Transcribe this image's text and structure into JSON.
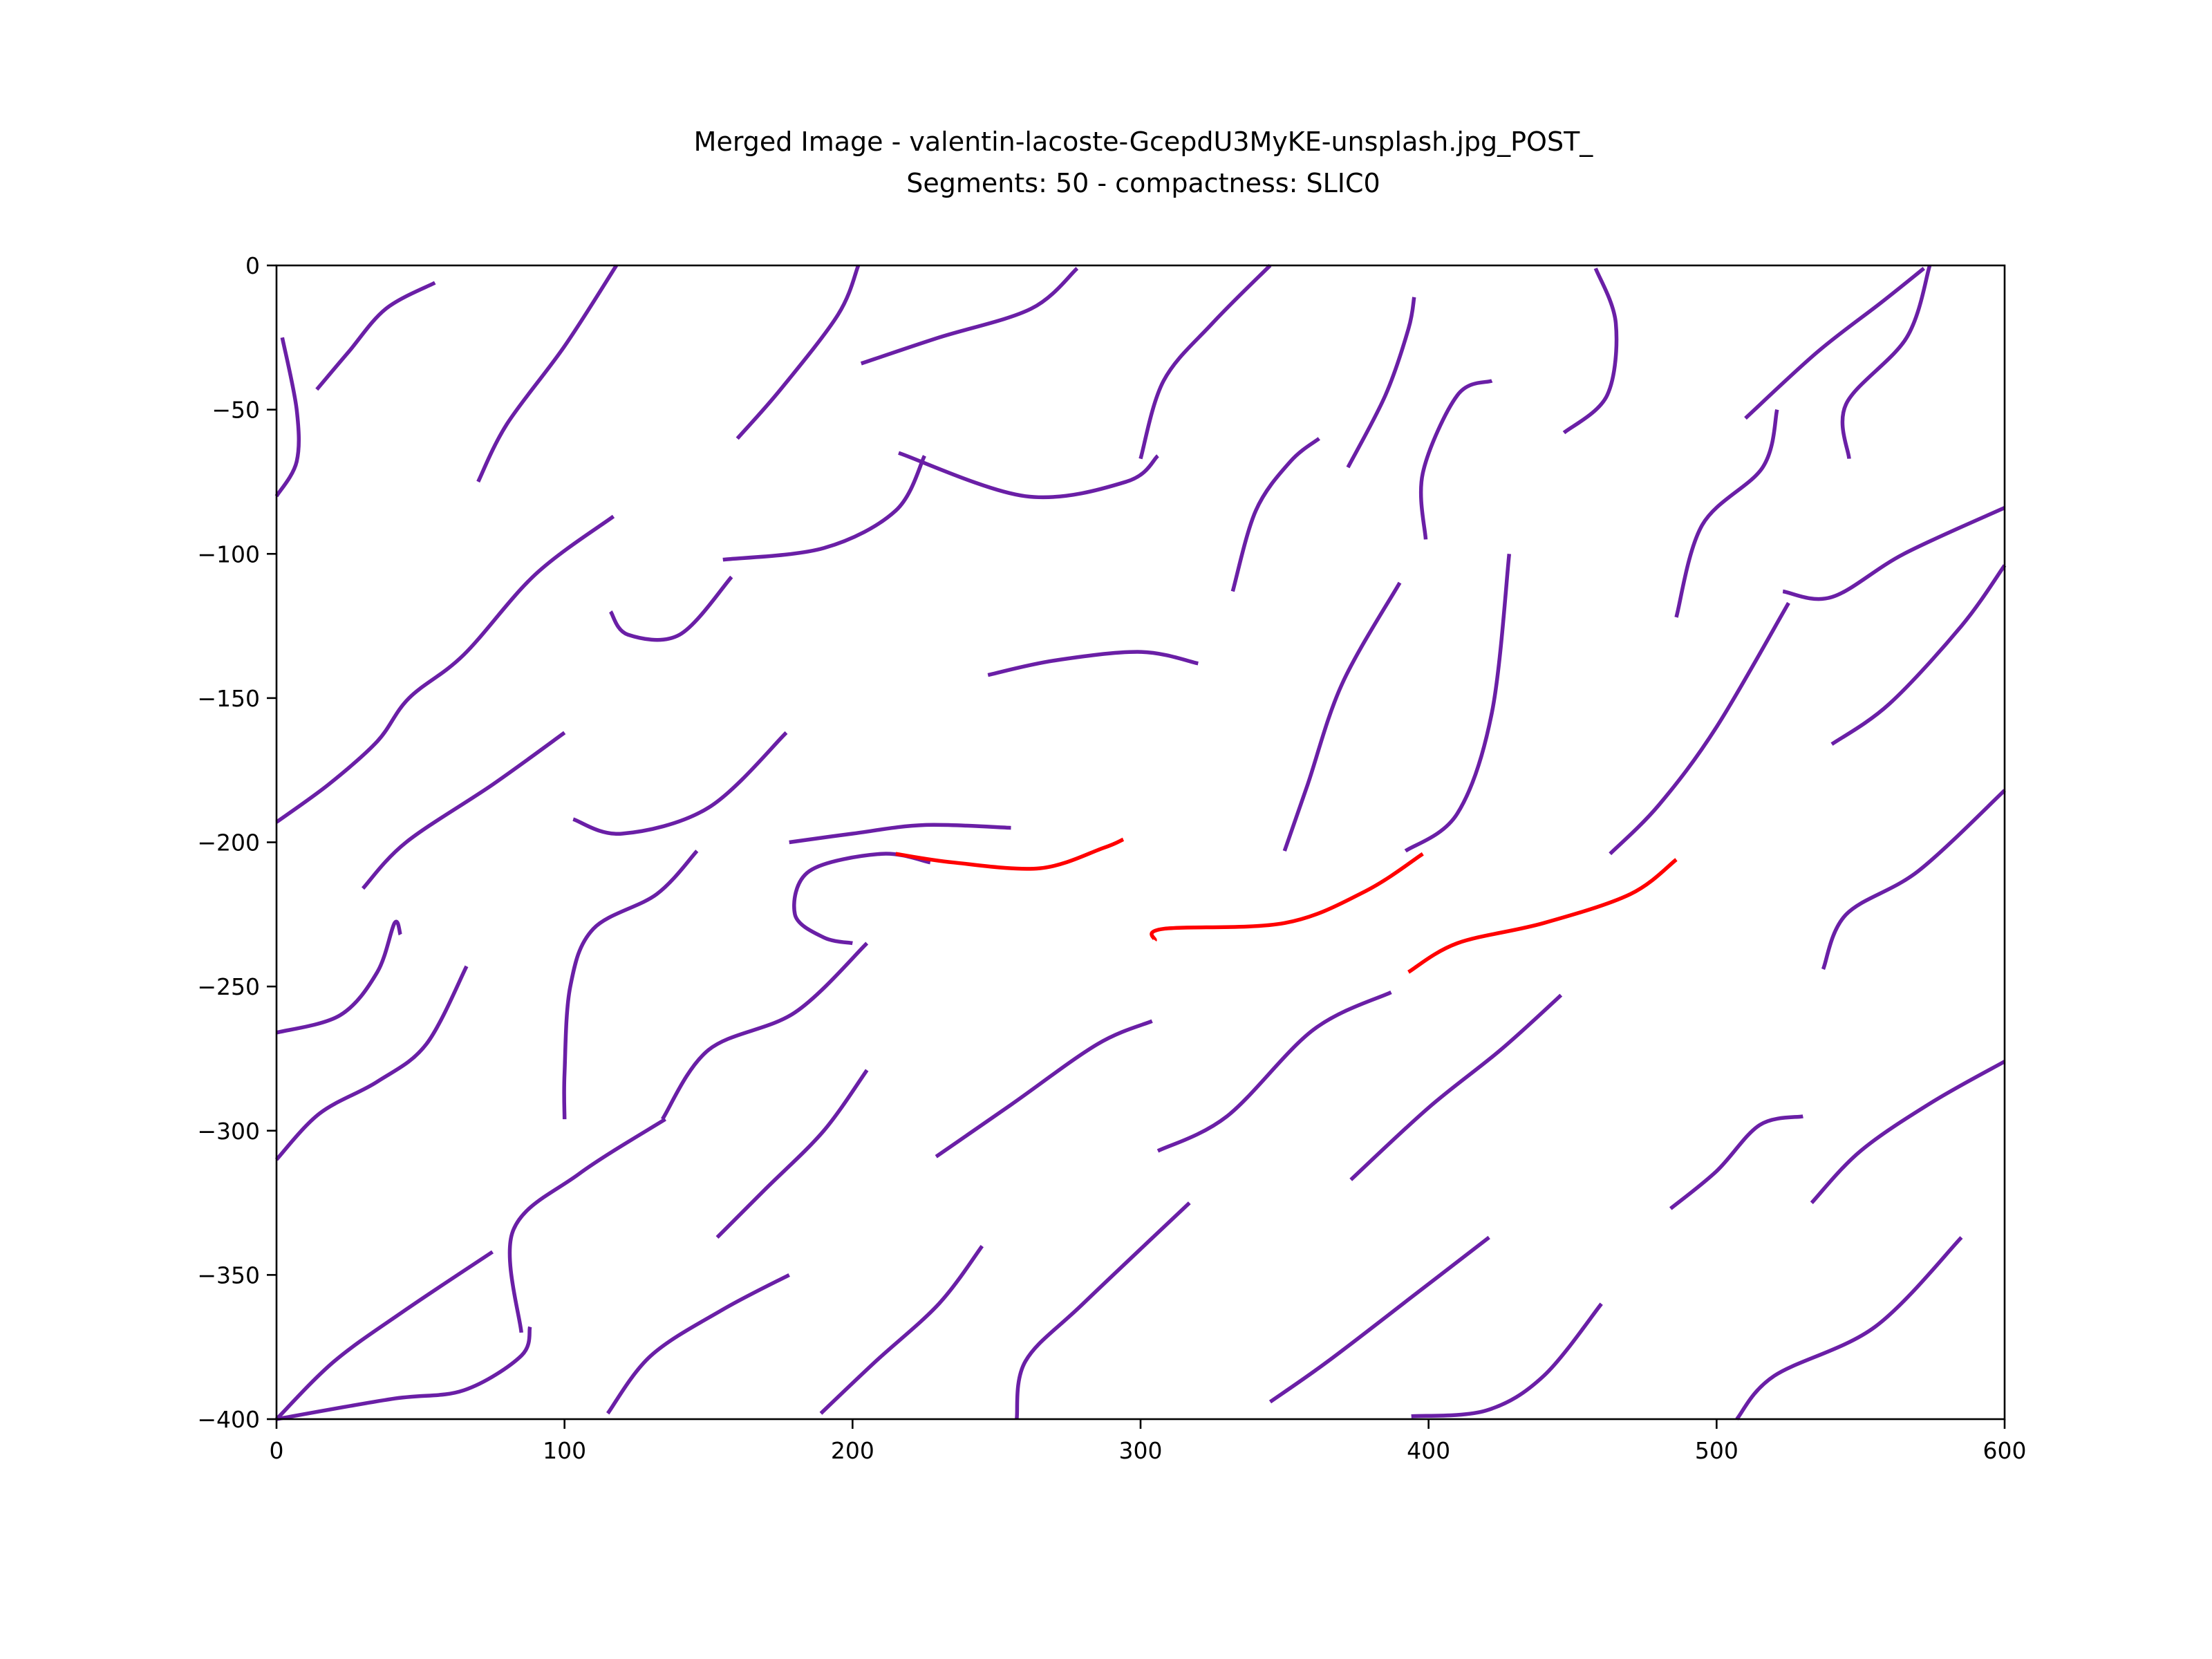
{
  "chart_data": {
    "type": "line",
    "title_line1": "Merged Image - valentin-lacoste-GcepdU3MyKE-unsplash.jpg_POST_",
    "title_line2": "Segments: 50 - compactness: SLIC0",
    "xlim": [
      0,
      600
    ],
    "ylim": [
      -400,
      0
    ],
    "xticks": [
      "0",
      "100",
      "200",
      "300",
      "400",
      "500",
      "600"
    ],
    "yticks": [
      "0",
      "−50",
      "−100",
      "−150",
      "−200",
      "−250",
      "−300",
      "−350",
      "−400"
    ],
    "xtick_values": [
      0,
      100,
      200,
      300,
      400,
      500,
      600
    ],
    "ytick_values": [
      0,
      -50,
      -100,
      -150,
      -200,
      -250,
      -300,
      -350,
      -400
    ],
    "grid": false,
    "colors": {
      "purple": "#6a1fa6",
      "red": "#ff0000"
    },
    "strokes": [
      {
        "color": "purple",
        "points": [
          [
            2,
            -25
          ],
          [
            7,
            -50
          ],
          [
            7,
            -68
          ],
          [
            0,
            -80
          ]
        ]
      },
      {
        "color": "purple",
        "points": [
          [
            14,
            -43
          ],
          [
            25,
            -30
          ],
          [
            38,
            -15
          ],
          [
            55,
            -6
          ]
        ]
      },
      {
        "color": "purple",
        "points": [
          [
            70,
            -75
          ],
          [
            80,
            -55
          ],
          [
            100,
            -28
          ],
          [
            118,
            0
          ]
        ]
      },
      {
        "color": "purple",
        "points": [
          [
            160,
            -60
          ],
          [
            175,
            -43
          ],
          [
            195,
            -17
          ],
          [
            202,
            0
          ]
        ]
      },
      {
        "color": "purple",
        "points": [
          [
            203,
            -34
          ],
          [
            230,
            -25
          ],
          [
            262,
            -15
          ],
          [
            278,
            -1
          ]
        ]
      },
      {
        "color": "purple",
        "points": [
          [
            300,
            -67
          ],
          [
            308,
            -40
          ],
          [
            325,
            -20
          ],
          [
            345,
            0
          ]
        ]
      },
      {
        "color": "purple",
        "points": [
          [
            216,
            -65
          ],
          [
            260,
            -80
          ],
          [
            295,
            -75
          ],
          [
            306,
            -66
          ]
        ]
      },
      {
        "color": "purple",
        "points": [
          [
            155,
            -102
          ],
          [
            190,
            -98
          ],
          [
            215,
            -85
          ],
          [
            225,
            -66
          ]
        ]
      },
      {
        "color": "purple",
        "points": [
          [
            116,
            -120
          ],
          [
            122,
            -128
          ],
          [
            140,
            -128
          ],
          [
            158,
            -108
          ]
        ]
      },
      {
        "color": "purple",
        "points": [
          [
            0,
            -193
          ],
          [
            18,
            -180
          ],
          [
            35,
            -165
          ],
          [
            46,
            -150
          ],
          [
            65,
            -135
          ],
          [
            90,
            -107
          ],
          [
            117,
            -87
          ]
        ]
      },
      {
        "color": "purple",
        "points": [
          [
            30,
            -216
          ],
          [
            45,
            -200
          ],
          [
            75,
            -180
          ],
          [
            100,
            -162
          ]
        ]
      },
      {
        "color": "purple",
        "points": [
          [
            103,
            -192
          ],
          [
            120,
            -197
          ],
          [
            150,
            -188
          ],
          [
            177,
            -162
          ]
        ]
      },
      {
        "color": "purple",
        "points": [
          [
            247,
            -142
          ],
          [
            270,
            -137
          ],
          [
            300,
            -134
          ],
          [
            320,
            -138
          ]
        ]
      },
      {
        "color": "purple",
        "points": [
          [
            178,
            -200
          ],
          [
            200,
            -197
          ],
          [
            225,
            -194
          ],
          [
            255,
            -195
          ]
        ]
      },
      {
        "color": "purple",
        "points": [
          [
            227,
            -207
          ],
          [
            210,
            -204
          ],
          [
            185,
            -210
          ],
          [
            180,
            -225
          ],
          [
            190,
            -233
          ],
          [
            200,
            -235
          ]
        ]
      },
      {
        "color": "purple",
        "points": [
          [
            332,
            -113
          ],
          [
            340,
            -85
          ],
          [
            352,
            -68
          ],
          [
            362,
            -60
          ]
        ]
      },
      {
        "color": "purple",
        "points": [
          [
            372,
            -70
          ],
          [
            385,
            -45
          ],
          [
            393,
            -22
          ],
          [
            395,
            -11
          ]
        ]
      },
      {
        "color": "purple",
        "points": [
          [
            399,
            -95
          ],
          [
            398,
            -72
          ],
          [
            410,
            -45
          ],
          [
            422,
            -40
          ]
        ]
      },
      {
        "color": "purple",
        "points": [
          [
            447,
            -58
          ],
          [
            462,
            -45
          ],
          [
            465,
            -20
          ],
          [
            458,
            -1
          ]
        ]
      },
      {
        "color": "purple",
        "points": [
          [
            510,
            -53
          ],
          [
            535,
            -30
          ],
          [
            557,
            -13
          ],
          [
            572,
            -1
          ]
        ]
      },
      {
        "color": "purple",
        "points": [
          [
            546,
            -67
          ],
          [
            545,
            -48
          ],
          [
            566,
            -25
          ],
          [
            574,
            0
          ]
        ]
      },
      {
        "color": "purple",
        "points": [
          [
            350,
            -203
          ],
          [
            358,
            -180
          ],
          [
            370,
            -145
          ],
          [
            390,
            -110
          ]
        ]
      },
      {
        "color": "purple",
        "points": [
          [
            392,
            -203
          ],
          [
            410,
            -190
          ],
          [
            422,
            -155
          ],
          [
            428,
            -100
          ]
        ]
      },
      {
        "color": "purple",
        "points": [
          [
            486,
            -122
          ],
          [
            495,
            -90
          ],
          [
            516,
            -70
          ],
          [
            521,
            -50
          ]
        ]
      },
      {
        "color": "purple",
        "points": [
          [
            523,
            -113
          ],
          [
            540,
            -115
          ],
          [
            565,
            -100
          ],
          [
            600,
            -84
          ]
        ]
      },
      {
        "color": "purple",
        "points": [
          [
            463,
            -204
          ],
          [
            480,
            -187
          ],
          [
            500,
            -160
          ],
          [
            525,
            -117
          ]
        ]
      },
      {
        "color": "purple",
        "points": [
          [
            540,
            -166
          ],
          [
            560,
            -152
          ],
          [
            585,
            -125
          ],
          [
            600,
            -104
          ]
        ]
      },
      {
        "color": "purple",
        "points": [
          [
            537,
            -244
          ],
          [
            545,
            -225
          ],
          [
            570,
            -210
          ],
          [
            600,
            -182
          ]
        ]
      },
      {
        "color": "purple",
        "points": [
          [
            0,
            -266
          ],
          [
            22,
            -260
          ],
          [
            35,
            -245
          ],
          [
            41,
            -228
          ],
          [
            43,
            -232
          ]
        ]
      },
      {
        "color": "purple",
        "points": [
          [
            0,
            -310
          ],
          [
            15,
            -294
          ],
          [
            35,
            -283
          ],
          [
            52,
            -270
          ],
          [
            66,
            -243
          ]
        ]
      },
      {
        "color": "purple",
        "points": [
          [
            100,
            -296
          ],
          [
            100,
            -280
          ],
          [
            102,
            -250
          ],
          [
            110,
            -230
          ],
          [
            132,
            -218
          ],
          [
            146,
            -203
          ]
        ]
      },
      {
        "color": "purple",
        "points": [
          [
            134,
            -296
          ],
          [
            150,
            -272
          ],
          [
            180,
            -259
          ],
          [
            205,
            -235
          ]
        ]
      },
      {
        "color": "purple",
        "points": [
          [
            0,
            -400
          ],
          [
            20,
            -380
          ],
          [
            45,
            -362
          ],
          [
            75,
            -342
          ]
        ]
      },
      {
        "color": "purple",
        "points": [
          [
            0,
            -400
          ],
          [
            40,
            -393
          ],
          [
            65,
            -390
          ],
          [
            85,
            -378
          ],
          [
            88,
            -368
          ]
        ]
      },
      {
        "color": "purple",
        "points": [
          [
            85,
            -370
          ],
          [
            82,
            -335
          ],
          [
            105,
            -315
          ],
          [
            135,
            -296
          ]
        ]
      },
      {
        "color": "purple",
        "points": [
          [
            153,
            -337
          ],
          [
            170,
            -320
          ],
          [
            190,
            -300
          ],
          [
            205,
            -279
          ]
        ]
      },
      {
        "color": "purple",
        "points": [
          [
            115,
            -398
          ],
          [
            130,
            -378
          ],
          [
            155,
            -362
          ],
          [
            178,
            -350
          ]
        ]
      },
      {
        "color": "purple",
        "points": [
          [
            189,
            -398
          ],
          [
            208,
            -380
          ],
          [
            230,
            -360
          ],
          [
            245,
            -340
          ]
        ]
      },
      {
        "color": "purple",
        "points": [
          [
            229,
            -309
          ],
          [
            255,
            -291
          ],
          [
            285,
            -270
          ],
          [
            304,
            -262
          ]
        ]
      },
      {
        "color": "purple",
        "points": [
          [
            257,
            -400
          ],
          [
            260,
            -380
          ],
          [
            280,
            -360
          ],
          [
            317,
            -325
          ]
        ]
      },
      {
        "color": "purple",
        "points": [
          [
            306,
            -307
          ],
          [
            330,
            -295
          ],
          [
            360,
            -265
          ],
          [
            387,
            -252
          ]
        ]
      },
      {
        "color": "purple",
        "points": [
          [
            373,
            -317
          ],
          [
            400,
            -292
          ],
          [
            425,
            -272
          ],
          [
            446,
            -253
          ]
        ]
      },
      {
        "color": "purple",
        "points": [
          [
            345,
            -394
          ],
          [
            365,
            -380
          ],
          [
            395,
            -357
          ],
          [
            421,
            -337
          ]
        ]
      },
      {
        "color": "purple",
        "points": [
          [
            394,
            -399
          ],
          [
            420,
            -397
          ],
          [
            440,
            -385
          ],
          [
            460,
            -360
          ]
        ]
      },
      {
        "color": "purple",
        "points": [
          [
            484,
            -327
          ],
          [
            500,
            -314
          ],
          [
            515,
            -298
          ],
          [
            530,
            -295
          ]
        ]
      },
      {
        "color": "purple",
        "points": [
          [
            533,
            -325
          ],
          [
            550,
            -307
          ],
          [
            575,
            -290
          ],
          [
            600,
            -276
          ]
        ]
      },
      {
        "color": "purple",
        "points": [
          [
            507,
            -400
          ],
          [
            520,
            -385
          ],
          [
            555,
            -368
          ],
          [
            585,
            -337
          ]
        ]
      },
      {
        "color": "red",
        "points": [
          [
            215,
            -204
          ],
          [
            235,
            -207
          ],
          [
            265,
            -209
          ],
          [
            287,
            -202
          ],
          [
            294,
            -199
          ]
        ]
      },
      {
        "color": "red",
        "points": [
          [
            305,
            -234
          ],
          [
            308,
            -230
          ],
          [
            350,
            -228
          ],
          [
            378,
            -217
          ],
          [
            398,
            -204
          ]
        ]
      },
      {
        "color": "red",
        "points": [
          [
            393,
            -245
          ],
          [
            410,
            -235
          ],
          [
            440,
            -228
          ],
          [
            470,
            -218
          ],
          [
            486,
            -206
          ]
        ]
      }
    ]
  }
}
